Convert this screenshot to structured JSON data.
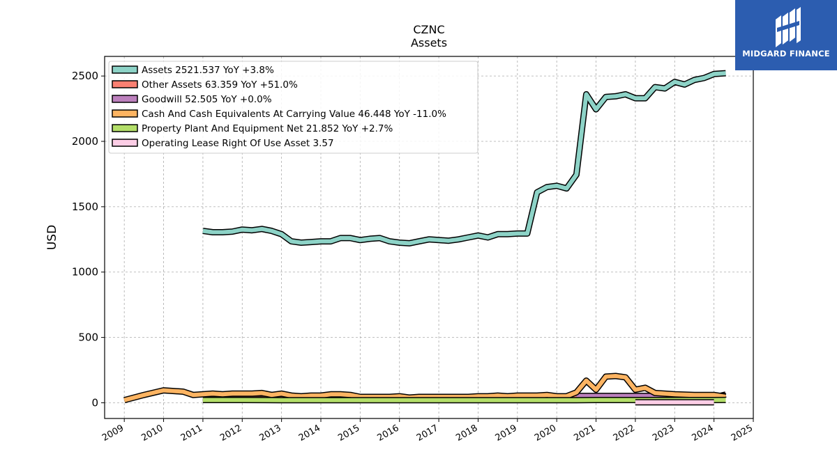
{
  "logo": {
    "text": "MIDGARD FINANCE"
  },
  "chart_data": {
    "type": "line",
    "title": "CZNC",
    "subtitle": "Assets",
    "ylabel": "USD",
    "xlim": [
      2008.5,
      2025
    ],
    "ylim": [
      -120,
      2650
    ],
    "x_ticks": [
      2009,
      2010,
      2011,
      2012,
      2013,
      2014,
      2015,
      2016,
      2017,
      2018,
      2019,
      2020,
      2021,
      2022,
      2023,
      2024,
      2025
    ],
    "y_ticks": [
      0,
      500,
      1000,
      1500,
      2000,
      2500
    ],
    "grid": true,
    "legend_position": "top-left",
    "series": [
      {
        "name": "Assets  2521.537 YoY +3.8%",
        "color": "#8dd3c7",
        "x": [
          2011.0,
          2011.25,
          2011.5,
          2011.75,
          2012.0,
          2012.25,
          2012.5,
          2012.75,
          2013.0,
          2013.25,
          2013.5,
          2013.75,
          2014.0,
          2014.25,
          2014.5,
          2014.75,
          2015.0,
          2015.25,
          2015.5,
          2015.75,
          2016.0,
          2016.25,
          2016.5,
          2016.75,
          2017.0,
          2017.25,
          2017.5,
          2017.75,
          2018.0,
          2018.25,
          2018.5,
          2018.75,
          2019.0,
          2019.25,
          2019.5,
          2019.75,
          2020.0,
          2020.25,
          2020.5,
          2020.75,
          2021.0,
          2021.25,
          2021.5,
          2021.75,
          2022.0,
          2022.25,
          2022.5,
          2022.75,
          2023.0,
          2023.25,
          2023.5,
          2023.75,
          2024.0,
          2024.3
        ],
        "y": [
          1315,
          1305,
          1305,
          1310,
          1325,
          1320,
          1330,
          1315,
          1290,
          1235,
          1225,
          1230,
          1235,
          1235,
          1260,
          1260,
          1245,
          1255,
          1260,
          1235,
          1225,
          1220,
          1235,
          1250,
          1245,
          1240,
          1250,
          1265,
          1280,
          1265,
          1290,
          1290,
          1295,
          1295,
          1610,
          1650,
          1660,
          1640,
          1745,
          2360,
          2245,
          2340,
          2345,
          2360,
          2330,
          2330,
          2415,
          2405,
          2455,
          2435,
          2470,
          2485,
          2515,
          2521.537
        ]
      },
      {
        "name": "Other Assets  63.359 YoY +51.0%",
        "color": "#fb8072",
        "x": [
          2011.0,
          2012.0,
          2013.0,
          2014.0,
          2015.0,
          2016.0,
          2017.0,
          2018.0,
          2019.0,
          2020.0,
          2021.0,
          2022.0,
          2023.0,
          2023.75,
          2024.0,
          2024.3
        ],
        "y": [
          30,
          30,
          30,
          30,
          28,
          28,
          30,
          30,
          32,
          35,
          38,
          40,
          42,
          40,
          42,
          63.359
        ]
      },
      {
        "name": "Goodwill  52.505 YoY +0.0%",
        "color": "#bc80bd",
        "x": [
          2020.5,
          2020.75,
          2021.0,
          2021.5,
          2022.0,
          2022.25,
          2022.5,
          2023.0,
          2023.5,
          2024.0,
          2024.3
        ],
        "y": [
          52.505,
          52.505,
          52.505,
          52.505,
          52.505,
          52.505,
          52.505,
          52.505,
          52.505,
          52.505,
          52.505
        ]
      },
      {
        "name": "Cash And Cash Equivalents At Carrying Value  46.448 YoY -11.0%",
        "color": "#fdb462",
        "x": [
          2009.0,
          2009.5,
          2010.0,
          2010.5,
          2010.75,
          2011.0,
          2011.25,
          2011.5,
          2011.75,
          2012.0,
          2012.25,
          2012.5,
          2012.75,
          2013.0,
          2013.25,
          2013.5,
          2013.75,
          2014.0,
          2014.25,
          2014.5,
          2014.75,
          2015.0,
          2015.25,
          2015.5,
          2015.75,
          2016.0,
          2016.25,
          2016.5,
          2016.75,
          2017.0,
          2017.25,
          2017.5,
          2017.75,
          2018.0,
          2018.25,
          2018.5,
          2018.75,
          2019.0,
          2019.25,
          2019.5,
          2019.75,
          2020.0,
          2020.25,
          2020.5,
          2020.75,
          2021.0,
          2021.25,
          2021.5,
          2021.75,
          2022.0,
          2022.25,
          2022.5,
          2023.0,
          2023.5,
          2024.0,
          2024.3
        ],
        "y": [
          20,
          60,
          95,
          85,
          60,
          65,
          70,
          65,
          70,
          70,
          70,
          75,
          60,
          70,
          55,
          50,
          55,
          55,
          65,
          65,
          60,
          45,
          45,
          45,
          45,
          50,
          40,
          45,
          45,
          45,
          45,
          45,
          45,
          50,
          50,
          55,
          50,
          55,
          55,
          55,
          60,
          50,
          50,
          80,
          170,
          100,
          200,
          205,
          195,
          100,
          115,
          75,
          65,
          60,
          60,
          46.448
        ]
      },
      {
        "name": "Property Plant And Equipment Net  21.852 YoY +2.7%",
        "color": "#b3de69",
        "x": [
          2011.0,
          2012.0,
          2013.0,
          2014.0,
          2015.0,
          2016.0,
          2017.0,
          2018.0,
          2019.0,
          2020.0,
          2020.5,
          2021.0,
          2022.0,
          2023.0,
          2024.0,
          2024.3
        ],
        "y": [
          21,
          21,
          20,
          20,
          20,
          20,
          20,
          20,
          20,
          20,
          20,
          21,
          21,
          21,
          21,
          21.852
        ]
      },
      {
        "name": "Operating Lease Right Of Use Asset  3.57",
        "color": "#fccde5",
        "x": [
          2022.0,
          2023.0,
          2024.0
        ],
        "y": [
          3.57,
          3.57,
          3.57
        ]
      }
    ]
  }
}
